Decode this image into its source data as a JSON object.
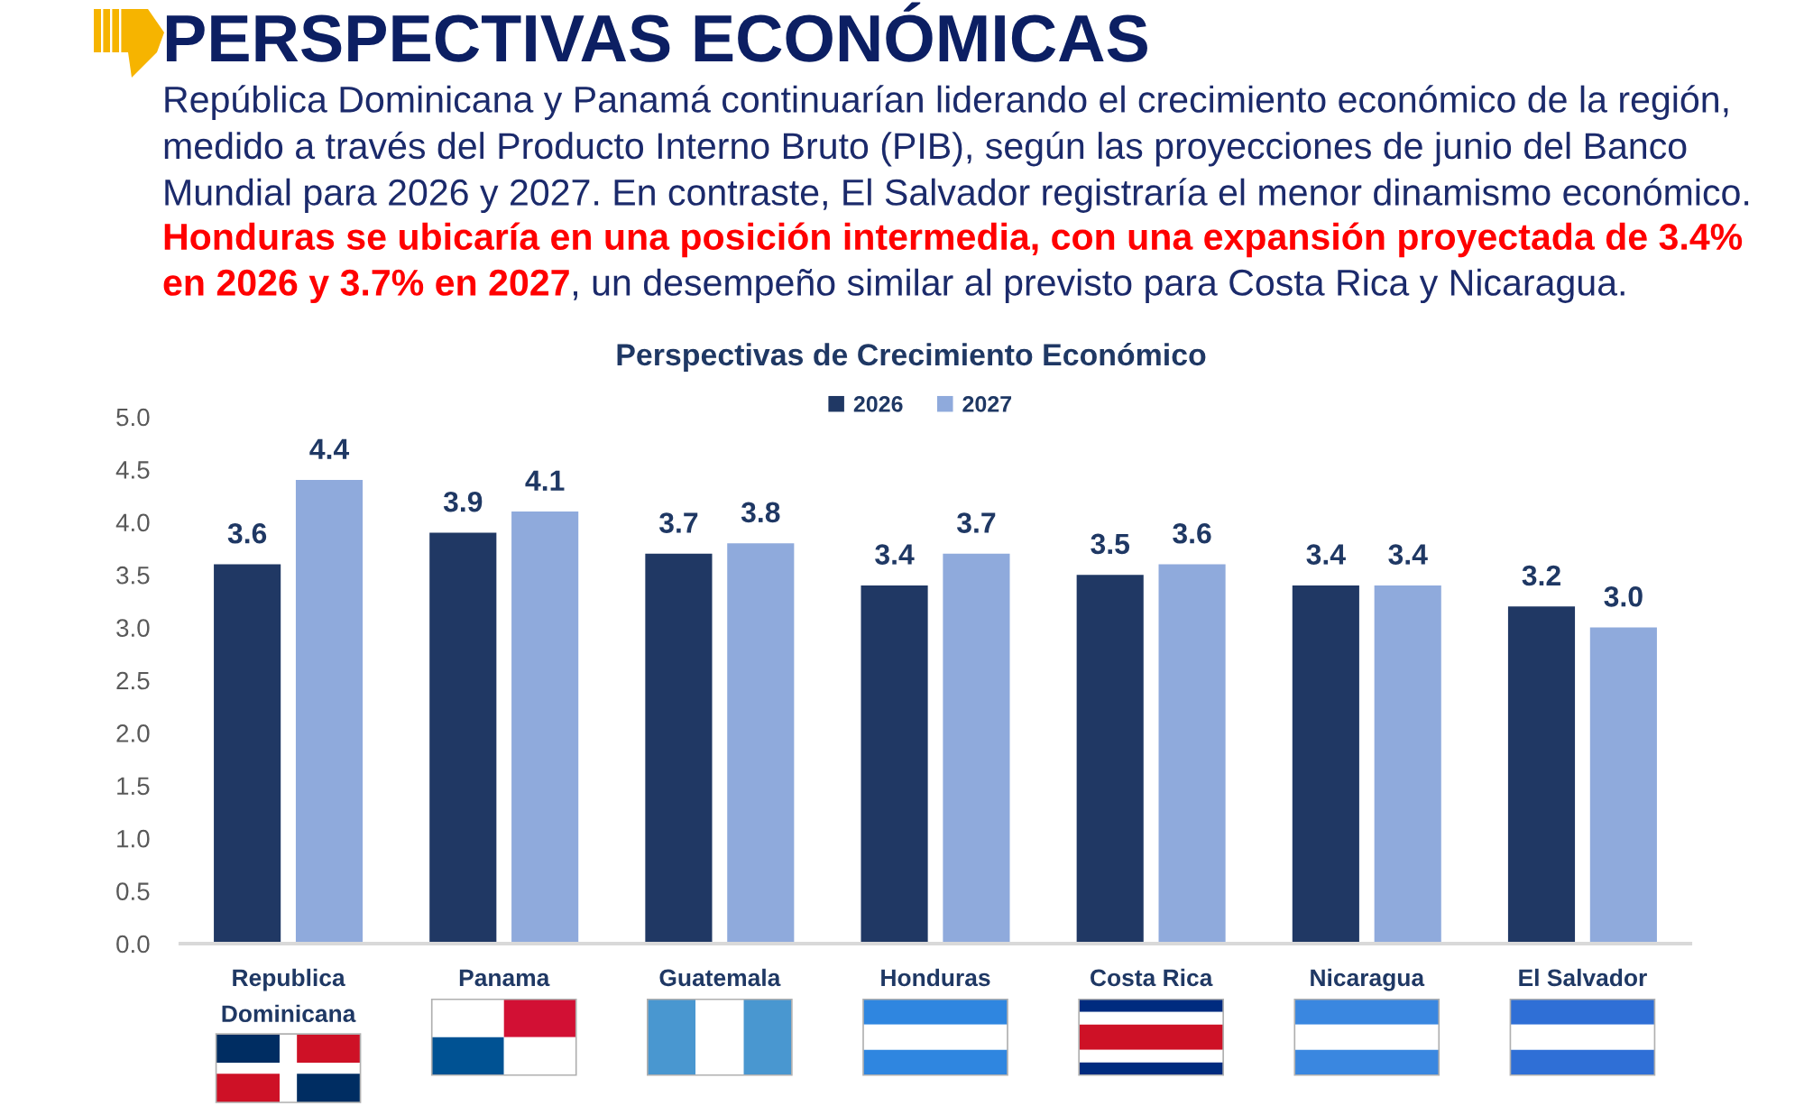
{
  "chart_data": {
    "type": "bar",
    "title": "PERSPECTIVAS ECONÓMICAS",
    "subtitle": "Perspectivas de Crecimiento Económico",
    "annotations": [
      "República Dominicana y Panamá continuarían liderando el crecimiento económico de la región,\nmedido a través del Producto Interno Bruto (PIB), según las proyecciones de junio del Banco\nMundial para 2026 y 2027. En contraste, El Salvador registraría el menor dinamismo económico.",
      "Honduras se ubicaría en una posición intermedia, con una expansión proyectada de 3.4%\nen 2026 y 3.7% en 2027",
      ", un desempeño similar al previsto para Costa Rica y Nicaragua."
    ],
    "categories": [
      "Republica\nDominicana",
      "Panama",
      "Guatemala",
      "Honduras",
      "Costa Rica",
      "Nicaragua",
      "El Salvador"
    ],
    "series": [
      {
        "name": "2026",
        "color": "#203864",
        "values": [
          3.6,
          3.9,
          3.7,
          3.4,
          3.5,
          3.4,
          3.2
        ],
        "value_labels": [
          "3.6",
          "3.9",
          "3.7",
          "3.4",
          "3.5",
          "3.4",
          "3.2"
        ]
      },
      {
        "name": "2027",
        "color": "#8faadc",
        "values": [
          4.4,
          4.1,
          3.8,
          3.7,
          3.6,
          3.4,
          3.0
        ],
        "value_labels": [
          "4.4",
          "4.1",
          "3.8",
          "3.7",
          "3.6",
          "3.4",
          "3.0"
        ]
      }
    ],
    "ylim": [
      0,
      5
    ],
    "yticks": [
      {
        "value": 0,
        "label": "0.0"
      },
      {
        "value": 0.5,
        "label": "0.5"
      },
      {
        "value": 1,
        "label": "1.0"
      },
      {
        "value": 1.5,
        "label": "1.5"
      },
      {
        "value": 2,
        "label": "2.0"
      },
      {
        "value": 2.5,
        "label": "2.5"
      },
      {
        "value": 3,
        "label": "3.0"
      },
      {
        "value": 3.5,
        "label": "3.5"
      },
      {
        "value": 4,
        "label": "4.0"
      },
      {
        "value": 4.5,
        "label": "4.5"
      },
      {
        "value": 5,
        "label": "5.0"
      }
    ],
    "legend": "top",
    "grid": false
  }
}
